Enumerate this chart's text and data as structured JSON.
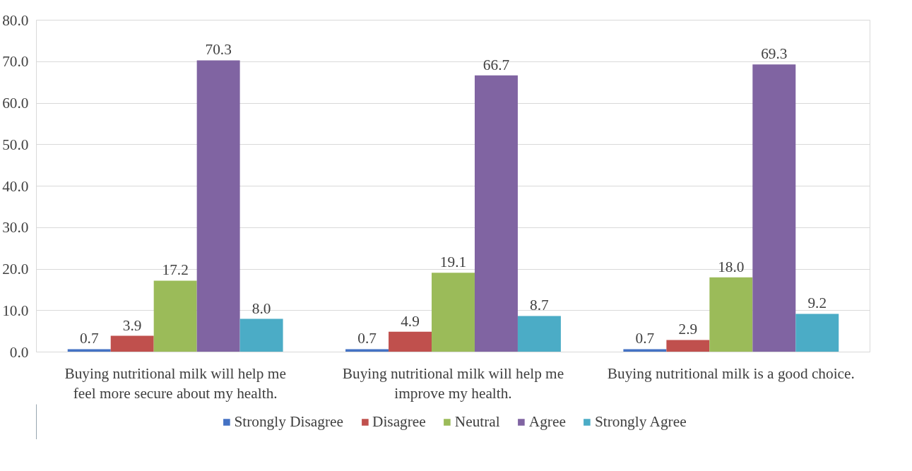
{
  "chart_data": {
    "type": "bar",
    "categories": [
      "Buying nutritional milk will help me feel more secure about my health.",
      "Buying nutritional milk will help me improve my health.",
      "Buying nutritional milk is a good choice."
    ],
    "series": [
      {
        "name": "Strongly Disagree",
        "color": "#4472c4",
        "values": [
          0.7,
          0.7,
          0.7
        ],
        "value_labels": [
          "0.7",
          "0.7",
          "0.7"
        ]
      },
      {
        "name": "Disagree",
        "color": "#c0504d",
        "values": [
          3.9,
          4.9,
          2.9
        ],
        "value_labels": [
          "3.9",
          "4.9",
          "2.9"
        ]
      },
      {
        "name": "Neutral",
        "color": "#9bbb59",
        "values": [
          17.2,
          19.1,
          18.0
        ],
        "value_labels": [
          "17.2",
          "19.1",
          "18.0"
        ]
      },
      {
        "name": "Agree",
        "color": "#8064a2",
        "values": [
          70.3,
          66.7,
          69.3
        ],
        "value_labels": [
          "70.3",
          "66.7",
          "69.3"
        ]
      },
      {
        "name": "Strongly Agree",
        "color": "#4bacc6",
        "values": [
          8.0,
          8.7,
          9.2
        ],
        "value_labels": [
          "8.0",
          "8.7",
          "9.2"
        ]
      }
    ],
    "ylim": [
      0,
      80
    ],
    "yticks": [
      {
        "value": 0,
        "label": "0.0"
      },
      {
        "value": 10,
        "label": "10.0"
      },
      {
        "value": 20,
        "label": "20.0"
      },
      {
        "value": 30,
        "label": "30.0"
      },
      {
        "value": 40,
        "label": "40.0"
      },
      {
        "value": 50,
        "label": "50.0"
      },
      {
        "value": 60,
        "label": "60.0"
      },
      {
        "value": 70,
        "label": "70.0"
      },
      {
        "value": 80,
        "label": "80.0"
      }
    ],
    "grid": "y",
    "legend": "bottom"
  }
}
